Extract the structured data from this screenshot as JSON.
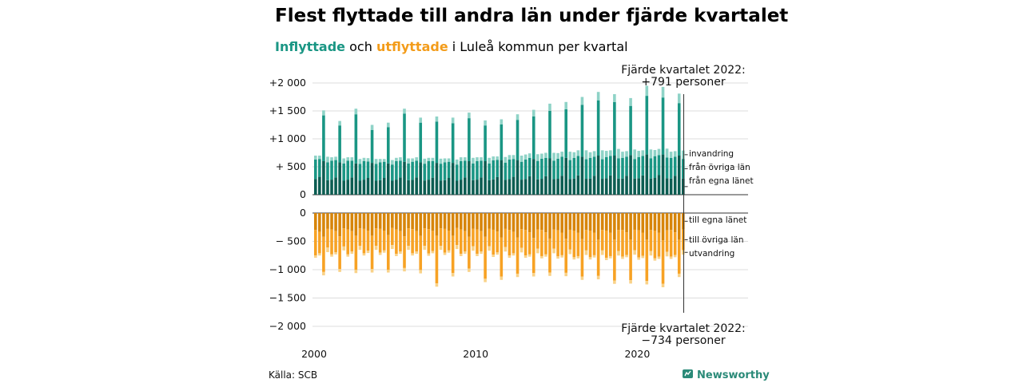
{
  "title": "Flest flyttade till andra län under fjärde kvartalet",
  "subtitle": {
    "part1": "Inflyttade",
    "part2": " och ",
    "part3": "utflyttade",
    "part4": " i Luleå kommun per kvartal"
  },
  "colors": {
    "in_own": "#0c5d52",
    "in_other": "#1a9684",
    "in_imm": "#8fd3c7",
    "out_own": "#d7850a",
    "out_other": "#f7a224",
    "out_emig": "#f9d288",
    "grid": "#dcdcdc",
    "brand": "#2a8a78"
  },
  "annotation_top": {
    "line1": "Fjärde kvartalet 2022:",
    "line2": "+791 personer"
  },
  "annotation_bottom": {
    "line1": "Fjärde kvartalet 2022:",
    "line2": "−734 personer"
  },
  "source": "Källa: SCB",
  "brand": "Newsworthy",
  "chart_data": {
    "type": "bar",
    "stacked": true,
    "x_labels": [
      "2000",
      "2010",
      "2020"
    ],
    "quarters": "2000 Q1 – 2022 Q4",
    "top_panel": {
      "yticks": [
        {
          "v": 2000,
          "label": "+2 000"
        },
        {
          "v": 1500,
          "label": "+1 500"
        },
        {
          "v": 1000,
          "label": "+1 000"
        },
        {
          "v": 500,
          "label": "+  500"
        },
        {
          "v": 0,
          "label": "0"
        }
      ],
      "ylim": [
        0,
        2000
      ],
      "series": [
        {
          "name": "från egna länet",
          "key": "own",
          "q1": [
            280,
            270,
            270,
            270,
            260,
            270,
            265,
            270,
            260,
            270,
            270,
            275,
            280,
            280,
            285,
            285,
            290,
            290,
            295,
            290,
            295,
            300,
            290
          ],
          "q2": [
            320,
            310,
            310,
            300,
            300,
            310,
            310,
            305,
            300,
            310,
            310,
            315,
            320,
            330,
            330,
            340,
            345,
            340,
            345,
            340,
            345,
            350,
            340
          ],
          "q3": [
            600,
            580,
            560,
            570,
            560,
            590,
            580,
            570,
            570,
            600,
            600,
            620,
            620,
            640,
            650,
            660,
            680,
            700,
            700,
            710,
            720,
            720,
            700
          ],
          "q4": [
            260,
            250,
            250,
            250,
            250,
            260,
            255,
            255,
            250,
            260,
            260,
            265,
            270,
            275,
            280,
            280,
            285,
            285,
            290,
            290,
            290,
            295,
            290
          ]
        },
        {
          "name": "från övriga län",
          "key": "other",
          "q1": [
            350,
            340,
            340,
            330,
            320,
            330,
            325,
            330,
            320,
            330,
            330,
            340,
            350,
            350,
            360,
            360,
            370,
            370,
            380,
            370,
            380,
            390,
            370
          ],
          "q2": [
            320,
            310,
            300,
            295,
            290,
            300,
            300,
            295,
            290,
            300,
            300,
            310,
            320,
            330,
            330,
            340,
            350,
            340,
            350,
            340,
            350,
            360,
            340
          ],
          "q3": [
            820,
            660,
            880,
            590,
            650,
            860,
            710,
            740,
            710,
            770,
            640,
            640,
            720,
            760,
            850,
            870,
            930,
            990,
            960,
            880,
            1050,
            1020,
            940
          ],
          "q4": [
            320,
            310,
            300,
            300,
            290,
            300,
            300,
            300,
            290,
            300,
            300,
            310,
            320,
            330,
            330,
            340,
            350,
            350,
            360,
            350,
            360,
            370,
            351
          ]
        },
        {
          "name": "invandring",
          "key": "imm",
          "q1": [
            70,
            60,
            60,
            60,
            60,
            60,
            60,
            60,
            70,
            70,
            70,
            70,
            80,
            90,
            90,
            100,
            100,
            100,
            110,
            110,
            110,
            110,
            110
          ],
          "q2": [
            60,
            60,
            60,
            60,
            50,
            60,
            60,
            60,
            60,
            60,
            60,
            60,
            70,
            80,
            90,
            90,
            100,
            100,
            100,
            100,
            100,
            110,
            100
          ],
          "q3": [
            90,
            80,
            100,
            90,
            80,
            90,
            90,
            90,
            100,
            100,
            90,
            90,
            100,
            120,
            130,
            130,
            140,
            150,
            140,
            140,
            180,
            190,
            170
          ],
          "q4": [
            100,
            90,
            90,
            90,
            80,
            90,
            90,
            90,
            90,
            100,
            100,
            100,
            110,
            120,
            140,
            150,
            160,
            160,
            170,
            170,
            160,
            160,
            150
          ]
        }
      ]
    },
    "bottom_panel": {
      "yticks": [
        {
          "v": 0,
          "label": "0"
        },
        {
          "v": -500,
          "label": "−  500"
        },
        {
          "v": -1000,
          "label": "−1 000"
        },
        {
          "v": -1500,
          "label": "−1 500"
        },
        {
          "v": -2000,
          "label": "−2 000"
        }
      ],
      "ylim": [
        -2000,
        0
      ],
      "series": [
        {
          "name": "till egna länet",
          "key": "own",
          "q1": [
            -300,
            -290,
            -290,
            -280,
            -280,
            -290,
            -285,
            -285,
            -280,
            -290,
            -290,
            -295,
            -300,
            -300,
            -300,
            -305,
            -310,
            -310,
            -310,
            -300,
            -305,
            -310,
            -300
          ],
          "q2": [
            -330,
            -320,
            -320,
            -310,
            -310,
            -320,
            -320,
            -315,
            -310,
            -320,
            -320,
            -325,
            -330,
            -340,
            -340,
            -345,
            -350,
            -345,
            -350,
            -340,
            -345,
            -350,
            -340
          ],
          "q3": [
            -420,
            -410,
            -400,
            -400,
            -390,
            -410,
            -405,
            -400,
            -400,
            -420,
            -420,
            -430,
            -430,
            -440,
            -450,
            -455,
            -460,
            -470,
            -470,
            -465,
            -470,
            -480,
            -470
          ],
          "q4": [
            -280,
            -270,
            -270,
            -270,
            -265,
            -270,
            -270,
            -270,
            -265,
            -275,
            -275,
            -280,
            -285,
            -290,
            -290,
            -295,
            -300,
            -300,
            -300,
            -295,
            -300,
            -305,
            -290
          ]
        },
        {
          "name": "till övriga län",
          "key": "other",
          "q1": [
            -450,
            -440,
            -440,
            -430,
            -420,
            -430,
            -425,
            -430,
            -420,
            -430,
            -430,
            -440,
            -450,
            -450,
            -460,
            -460,
            -470,
            -470,
            -480,
            -470,
            -480,
            -490,
            -470
          ],
          "q2": [
            -380,
            -370,
            -360,
            -355,
            -350,
            -360,
            -360,
            -355,
            -350,
            -360,
            -360,
            -370,
            -380,
            -390,
            -390,
            -400,
            -410,
            -400,
            -410,
            -400,
            -410,
            -420,
            -400
          ],
          "q3": [
            -620,
            -580,
            -600,
            -590,
            -610,
            -560,
            -600,
            -840,
            -660,
            -560,
            -740,
            -690,
            -640,
            -620,
            -600,
            -600,
            -660,
            -640,
            -720,
            -720,
            -730,
            -770,
            -600
          ],
          "q4": [
            -330,
            -320,
            -310,
            -310,
            -300,
            -310,
            -310,
            -310,
            -300,
            -310,
            -310,
            -320,
            -330,
            -340,
            -340,
            -350,
            -360,
            -360,
            -370,
            -360,
            -370,
            -380,
            -364
          ]
        },
        {
          "name": "utvandring",
          "key": "emig",
          "q1": [
            -40,
            -40,
            -40,
            -40,
            -40,
            -40,
            -40,
            -40,
            -40,
            -40,
            -40,
            -40,
            -40,
            -40,
            -40,
            -40,
            -40,
            -40,
            -40,
            -40,
            -40,
            -40,
            -40
          ],
          "q2": [
            -40,
            -40,
            -40,
            -40,
            -40,
            -40,
            -40,
            -40,
            -40,
            -40,
            -40,
            -40,
            -40,
            -40,
            -40,
            -40,
            -40,
            -40,
            -40,
            -40,
            -40,
            -40,
            -40
          ],
          "q3": [
            -60,
            -50,
            -60,
            -60,
            -50,
            -60,
            -60,
            -60,
            -60,
            -60,
            -60,
            -60,
            -60,
            -60,
            -60,
            -60,
            -60,
            -60,
            -60,
            -60,
            -60,
            -60,
            -60
          ],
          "q4": [
            -80,
            -70,
            -70,
            -70,
            -70,
            -70,
            -70,
            -70,
            -70,
            -80,
            -80,
            -80,
            -80,
            -80,
            -80,
            -80,
            -80,
            -80,
            -80,
            -80,
            -80,
            -80,
            -80
          ]
        }
      ]
    }
  }
}
